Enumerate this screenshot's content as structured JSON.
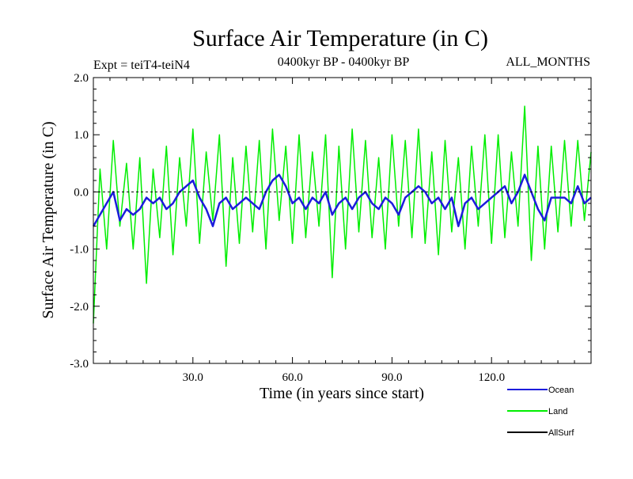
{
  "chart_data": {
    "type": "line",
    "title": "Surface Air Temperature (in C)",
    "subtitle_left": "Expt = teiT4-teiN4",
    "subtitle_center": "0400kyr BP - 0400kyr BP",
    "subtitle_right": "ALL_MONTHS",
    "xlabel": "Time (in years since start)",
    "ylabel": "Surface Air Temperature (in C)",
    "xlim": [
      0,
      150
    ],
    "ylim": [
      -3.0,
      2.0
    ],
    "x_ticks": [
      30,
      60,
      90,
      120
    ],
    "x_tick_labels": [
      "30.0",
      "60.0",
      "90.0",
      "120.0"
    ],
    "y_ticks": [
      2.0,
      1.0,
      0.0,
      -1.0,
      -2.0,
      -3.0
    ],
    "y_tick_labels": [
      "2.0",
      "1.0",
      "0.0",
      "-1.0",
      "-2.0",
      "-3.0"
    ],
    "reference_line_y": 0.0,
    "series": [
      {
        "name": "Land",
        "color": "#00ee00",
        "x": [
          0,
          2,
          4,
          6,
          8,
          10,
          12,
          14,
          16,
          18,
          20,
          22,
          24,
          26,
          28,
          30,
          32,
          34,
          36,
          38,
          40,
          42,
          44,
          46,
          48,
          50,
          52,
          54,
          56,
          58,
          60,
          62,
          64,
          66,
          68,
          70,
          72,
          74,
          76,
          78,
          80,
          82,
          84,
          86,
          88,
          90,
          92,
          94,
          96,
          98,
          100,
          102,
          104,
          106,
          108,
          110,
          112,
          114,
          116,
          118,
          120,
          122,
          124,
          126,
          128,
          130,
          132,
          134,
          136,
          138,
          140,
          142,
          144,
          146,
          148,
          150
        ],
        "values": [
          -2.3,
          0.4,
          -1.0,
          0.9,
          -0.6,
          0.5,
          -1.0,
          0.6,
          -1.6,
          0.4,
          -0.8,
          0.8,
          -1.1,
          0.6,
          -0.6,
          1.1,
          -0.9,
          0.7,
          -0.5,
          1.0,
          -1.3,
          0.6,
          -0.9,
          0.8,
          -0.7,
          0.9,
          -1.0,
          1.1,
          -0.5,
          0.8,
          -0.9,
          1.0,
          -0.8,
          0.7,
          -0.6,
          1.0,
          -1.5,
          0.8,
          -1.0,
          1.1,
          -0.7,
          0.9,
          -0.8,
          0.6,
          -1.0,
          1.0,
          -0.6,
          0.9,
          -0.8,
          1.1,
          -0.9,
          0.7,
          -1.1,
          0.9,
          -0.7,
          0.6,
          -1.0,
          0.8,
          -0.6,
          1.0,
          -0.9,
          1.0,
          -0.8,
          0.7,
          -0.6,
          1.5,
          -1.2,
          0.8,
          -1.0,
          0.8,
          -0.7,
          0.9,
          -0.6,
          0.9,
          -0.5,
          0.7
        ]
      },
      {
        "name": "Ocean",
        "color": "#1c1cdc",
        "x": [
          0,
          2,
          4,
          6,
          8,
          10,
          12,
          14,
          16,
          18,
          20,
          22,
          24,
          26,
          28,
          30,
          32,
          34,
          36,
          38,
          40,
          42,
          44,
          46,
          48,
          50,
          52,
          54,
          56,
          58,
          60,
          62,
          64,
          66,
          68,
          70,
          72,
          74,
          76,
          78,
          80,
          82,
          84,
          86,
          88,
          90,
          92,
          94,
          96,
          98,
          100,
          102,
          104,
          106,
          108,
          110,
          112,
          114,
          116,
          118,
          120,
          122,
          124,
          126,
          128,
          130,
          132,
          134,
          136,
          138,
          140,
          142,
          144,
          146,
          148,
          150
        ],
        "values": [
          -0.6,
          -0.4,
          -0.2,
          0.0,
          -0.5,
          -0.3,
          -0.4,
          -0.3,
          -0.1,
          -0.2,
          -0.1,
          -0.3,
          -0.2,
          0.0,
          0.1,
          0.2,
          -0.1,
          -0.3,
          -0.6,
          -0.2,
          -0.1,
          -0.3,
          -0.2,
          -0.1,
          -0.2,
          -0.3,
          0.0,
          0.2,
          0.3,
          0.1,
          -0.2,
          -0.1,
          -0.3,
          -0.1,
          -0.2,
          0.0,
          -0.4,
          -0.2,
          -0.1,
          -0.3,
          -0.1,
          0.0,
          -0.2,
          -0.3,
          -0.1,
          -0.2,
          -0.4,
          -0.1,
          0.0,
          0.1,
          0.0,
          -0.2,
          -0.1,
          -0.3,
          -0.1,
          -0.6,
          -0.2,
          -0.1,
          -0.3,
          -0.2,
          -0.1,
          0.0,
          0.1,
          -0.2,
          0.0,
          0.3,
          0.0,
          -0.3,
          -0.5,
          -0.1,
          -0.1,
          -0.1,
          -0.2,
          0.1,
          -0.2,
          -0.1
        ]
      },
      {
        "name": "AllSurf",
        "color": "#000000",
        "x": [],
        "values": []
      }
    ],
    "legend_position": "bottom-right"
  }
}
